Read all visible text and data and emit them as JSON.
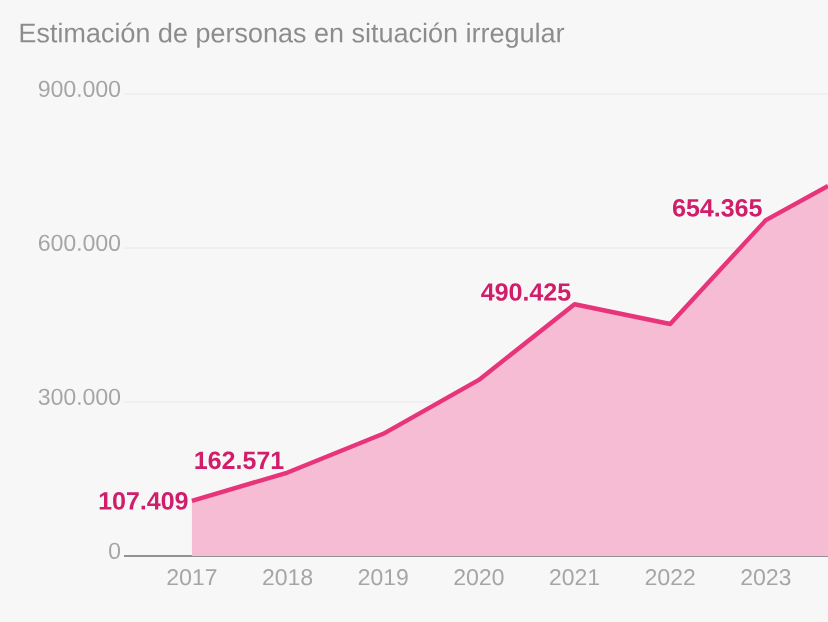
{
  "chart_data": {
    "type": "area",
    "title": "Estimación de personas en situación irregular",
    "x": [
      2017,
      2018,
      2019,
      2020,
      2021,
      2022,
      2023,
      2023.65
    ],
    "series": [
      {
        "color": "#e8347a",
        "values": [
          107409,
          162571,
          238000,
          343000,
          490425,
          452000,
          654365,
          721000
        ]
      }
    ],
    "value_labels": [
      "107.409",
      "162.571",
      null,
      null,
      "490.425",
      null,
      "654.365",
      null
    ],
    "xlim": [
      2016.29,
      2023.65
    ],
    "xticks": [
      2017,
      2018,
      2019,
      2020,
      2021,
      2022,
      2023
    ],
    "ylim": [
      0,
      900000
    ],
    "yticks": [
      {
        "value": 0,
        "label": "0"
      },
      {
        "value": 300000,
        "label": "300.000"
      },
      {
        "value": 600000,
        "label": "600.000"
      },
      {
        "value": 900000,
        "label": "900.000"
      }
    ],
    "grid": "y"
  }
}
